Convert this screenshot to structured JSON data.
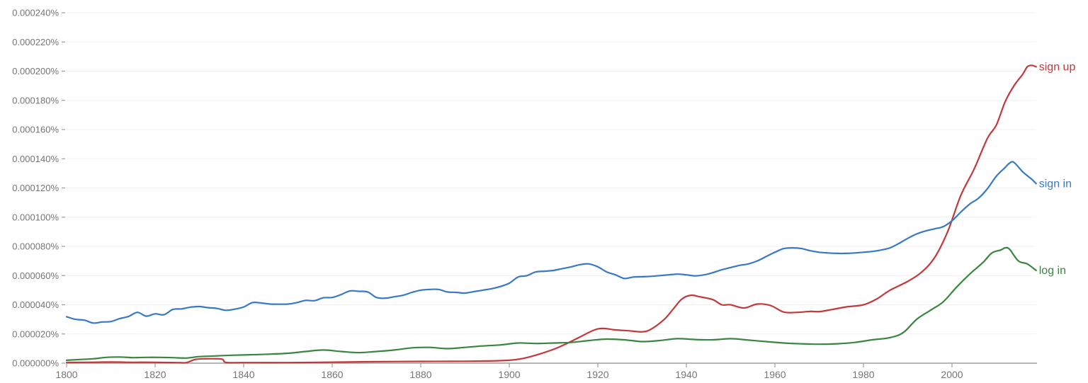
{
  "chart_data": {
    "type": "line",
    "title": "",
    "xlabel": "",
    "ylabel": "",
    "xlim": [
      1800,
      2019
    ],
    "ylim": [
      0,
      0.00024
    ],
    "grid": true,
    "legend_position": "inline-right-end",
    "y_ticks": [
      "0.000000%",
      "0.000020%",
      "0.000040%",
      "0.000060%",
      "0.000080%",
      "0.000100%",
      "0.000120%",
      "0.000140%",
      "0.000160%",
      "0.000180%",
      "0.000200%",
      "0.000220%",
      "0.000240%"
    ],
    "x_ticks": [
      "1800",
      "1820",
      "1840",
      "1860",
      "1880",
      "1900",
      "1920",
      "1940",
      "1960",
      "1980",
      "2000"
    ],
    "series": [
      {
        "name": "sign up",
        "color": "#c5383a",
        "x": [
          1800,
          1805,
          1810,
          1815,
          1820,
          1825,
          1827,
          1829,
          1831,
          1835,
          1836,
          1840,
          1850,
          1860,
          1870,
          1880,
          1890,
          1895,
          1900,
          1903,
          1906,
          1910,
          1913,
          1916,
          1919,
          1921,
          1924,
          1927,
          1930,
          1932,
          1935,
          1937,
          1939,
          1941,
          1943,
          1946,
          1948,
          1950,
          1953,
          1956,
          1959,
          1962,
          1965,
          1968,
          1970,
          1973,
          1976,
          1980,
          1983,
          1986,
          1990,
          1993,
          1996,
          1999,
          2002,
          2005,
          2008,
          2010,
          2012,
          2014,
          2016,
          2017,
          2018,
          2019
        ],
        "values": [
          5e-07,
          6e-07,
          8e-07,
          6e-07,
          6e-07,
          4e-07,
          4e-07,
          2.5e-06,
          3e-06,
          2.8e-06,
          5e-07,
          4e-07,
          4e-07,
          7e-07,
          1e-06,
          1.2e-06,
          1.3e-06,
          1.5e-06,
          2e-06,
          3.2e-06,
          5.5e-06,
          9.5e-06,
          1.35e-05,
          1.8e-05,
          2.25e-05,
          2.38e-05,
          2.28e-05,
          2.22e-05,
          2.15e-05,
          2.32e-05,
          3e-05,
          3.7e-05,
          4.4e-05,
          4.65e-05,
          4.55e-05,
          4.35e-05,
          4e-05,
          4e-05,
          3.78e-05,
          4.05e-05,
          3.95e-05,
          3.5e-05,
          3.48e-05,
          3.55e-05,
          3.53e-05,
          3.68e-05,
          3.85e-05,
          4e-05,
          4.4e-05,
          5e-05,
          5.6e-05,
          6.2e-05,
          7.2e-05,
          9e-05,
          0.000115,
          0.000133,
          0.000154,
          0.000163,
          0.000179,
          0.00019,
          0.000198,
          0.000203,
          0.000204,
          0.000203
        ]
      },
      {
        "name": "sign in",
        "color": "#3878c7",
        "x": [
          1800,
          1802,
          1804,
          1806,
          1808,
          1810,
          1812,
          1814,
          1816,
          1818,
          1820,
          1822,
          1824,
          1826,
          1828,
          1830,
          1832,
          1834,
          1836,
          1838,
          1840,
          1842,
          1844,
          1846,
          1848,
          1850,
          1852,
          1854,
          1856,
          1858,
          1860,
          1862,
          1864,
          1866,
          1868,
          1870,
          1872,
          1874,
          1876,
          1878,
          1880,
          1882,
          1884,
          1886,
          1888,
          1890,
          1892,
          1894,
          1896,
          1898,
          1900,
          1902,
          1904,
          1906,
          1908,
          1910,
          1912,
          1914,
          1916,
          1918,
          1920,
          1922,
          1924,
          1926,
          1928,
          1930,
          1932,
          1934,
          1936,
          1938,
          1940,
          1942,
          1944,
          1946,
          1948,
          1950,
          1952,
          1954,
          1956,
          1958,
          1960,
          1962,
          1964,
          1966,
          1968,
          1970,
          1972,
          1974,
          1976,
          1978,
          1980,
          1982,
          1984,
          1986,
          1988,
          1990,
          1992,
          1994,
          1996,
          1998,
          2000,
          2002,
          2004,
          2006,
          2008,
          2010,
          2012,
          2013,
          2014,
          2016,
          2018,
          2019
        ],
        "values": [
          3.18e-05,
          3e-05,
          2.95e-05,
          2.75e-05,
          2.82e-05,
          2.85e-05,
          3.05e-05,
          3.2e-05,
          3.48e-05,
          3.22e-05,
          3.38e-05,
          3.32e-05,
          3.68e-05,
          3.72e-05,
          3.84e-05,
          3.88e-05,
          3.8e-05,
          3.75e-05,
          3.62e-05,
          3.7e-05,
          3.85e-05,
          4.15e-05,
          4.12e-05,
          4.05e-05,
          4.04e-05,
          4.05e-05,
          4.15e-05,
          4.3e-05,
          4.28e-05,
          4.48e-05,
          4.5e-05,
          4.7e-05,
          4.95e-05,
          4.92e-05,
          4.88e-05,
          4.5e-05,
          4.45e-05,
          4.55e-05,
          4.65e-05,
          4.85e-05,
          5e-05,
          5.05e-05,
          5.05e-05,
          4.88e-05,
          4.85e-05,
          4.8e-05,
          4.9e-05,
          5e-05,
          5.1e-05,
          5.25e-05,
          5.48e-05,
          5.9e-05,
          6e-05,
          6.25e-05,
          6.3e-05,
          6.35e-05,
          6.48e-05,
          6.6e-05,
          6.75e-05,
          6.8e-05,
          6.6e-05,
          6.25e-05,
          6.05e-05,
          5.8e-05,
          5.9e-05,
          5.92e-05,
          5.95e-05,
          6e-05,
          6.05e-05,
          6.1e-05,
          6.05e-05,
          5.98e-05,
          6.05e-05,
          6.2e-05,
          6.4e-05,
          6.55e-05,
          6.7e-05,
          6.8e-05,
          7e-05,
          7.3e-05,
          7.6e-05,
          7.85e-05,
          7.9e-05,
          7.85e-05,
          7.7e-05,
          7.6e-05,
          7.55e-05,
          7.52e-05,
          7.52e-05,
          7.55e-05,
          7.6e-05,
          7.65e-05,
          7.75e-05,
          7.9e-05,
          8.2e-05,
          8.55e-05,
          8.85e-05,
          9.05e-05,
          9.2e-05,
          9.35e-05,
          9.75e-05,
          0.0001035,
          0.000109,
          0.000113,
          0.0001195,
          0.000128,
          0.000134,
          0.000137,
          0.0001375,
          0.000131,
          0.000126,
          0.000123
        ]
      },
      {
        "name": "log in",
        "color": "#3a8540",
        "x": [
          1800,
          1803,
          1806,
          1809,
          1812,
          1815,
          1818,
          1821,
          1824,
          1827,
          1830,
          1834,
          1838,
          1842,
          1846,
          1850,
          1854,
          1858,
          1862,
          1866,
          1870,
          1874,
          1878,
          1882,
          1886,
          1890,
          1894,
          1898,
          1902,
          1906,
          1910,
          1914,
          1918,
          1922,
          1926,
          1930,
          1934,
          1938,
          1942,
          1946,
          1950,
          1954,
          1958,
          1962,
          1966,
          1970,
          1974,
          1978,
          1982,
          1986,
          1989,
          1992,
          1995,
          1998,
          2001,
          2004,
          2007,
          2009,
          2011,
          2012,
          2013,
          2015,
          2017,
          2019
        ],
        "values": [
          2e-06,
          2.5e-06,
          3e-06,
          4e-06,
          4.2e-06,
          3.8e-06,
          4e-06,
          4e-06,
          3.8e-06,
          3.5e-06,
          4.5e-06,
          5e-06,
          5.5e-06,
          5.8e-06,
          6.2e-06,
          6.8e-06,
          8e-06,
          9e-06,
          8e-06,
          7.2e-06,
          8e-06,
          9e-06,
          1.05e-05,
          1.08e-05,
          1e-05,
          1.08e-05,
          1.18e-05,
          1.25e-05,
          1.38e-05,
          1.35e-05,
          1.38e-05,
          1.42e-05,
          1.55e-05,
          1.65e-05,
          1.6e-05,
          1.48e-05,
          1.55e-05,
          1.68e-05,
          1.62e-05,
          1.6e-05,
          1.68e-05,
          1.58e-05,
          1.48e-05,
          1.38e-05,
          1.33e-05,
          1.3e-05,
          1.33e-05,
          1.42e-05,
          1.6e-05,
          1.75e-05,
          2.1e-05,
          3e-05,
          3.6e-05,
          4.2e-05,
          5.2e-05,
          6.1e-05,
          6.9e-05,
          7.55e-05,
          7.75e-05,
          7.9e-05,
          7.8e-05,
          7e-05,
          6.8e-05,
          6.35e-05
        ]
      }
    ]
  }
}
